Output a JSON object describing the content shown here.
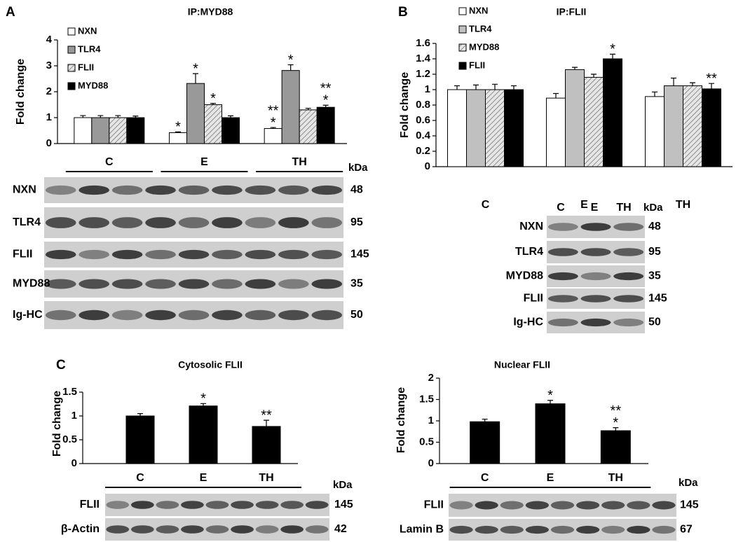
{
  "panel_labels": [
    "A",
    "B",
    "C"
  ],
  "chart_data": [
    {
      "type": "bar",
      "title": "IP:MYD88",
      "y_label": "Fold change",
      "categories": [
        "C",
        "E",
        "TH"
      ],
      "ylim": [
        0,
        4
      ],
      "yticks": [
        0,
        1,
        2,
        3,
        4
      ],
      "series": [
        {
          "name": "NXN",
          "color": "#ffffff",
          "values": [
            1,
            0.42,
            0.58
          ],
          "errors": [
            0.08,
            0.03,
            0.04
          ],
          "stars": [
            null,
            [
              "*"
            ],
            [
              "**",
              "*"
            ]
          ]
        },
        {
          "name": "TLR4",
          "color": "#999999",
          "values": [
            1,
            2.32,
            2.82
          ],
          "errors": [
            0.08,
            0.38,
            0.22
          ],
          "stars": [
            null,
            [
              "*"
            ],
            [
              "*"
            ]
          ]
        },
        {
          "name": "FLII",
          "color": "#d0d0d0",
          "hatch": true,
          "values": [
            1,
            1.5,
            1.3
          ],
          "errors": [
            0.08,
            0.05,
            0.06
          ],
          "stars": [
            null,
            [
              "*"
            ],
            null
          ]
        },
        {
          "name": "MYD88",
          "color": "#000000",
          "values": [
            1,
            1.0,
            1.4
          ],
          "errors": [
            0.06,
            0.07,
            0.08
          ],
          "stars": [
            null,
            null,
            [
              "**",
              "*"
            ]
          ]
        }
      ]
    },
    {
      "type": "bar",
      "title": "IP:FLII",
      "y_label": "Fold change",
      "categories": [
        "C",
        "E",
        "TH"
      ],
      "ylim": [
        0,
        1.6
      ],
      "yticks": [
        0,
        0.2,
        0.4,
        0.6,
        0.8,
        1,
        1.2,
        1.4,
        1.6
      ],
      "series": [
        {
          "name": "NXN",
          "color": "#ffffff",
          "values": [
            1.0,
            0.89,
            0.91
          ],
          "errors": [
            0.05,
            0.06,
            0.06
          ],
          "stars": [
            null,
            null,
            null
          ]
        },
        {
          "name": "TLR4",
          "color": "#c0c0c0",
          "values": [
            1.0,
            1.26,
            1.05
          ],
          "errors": [
            0.06,
            0.03,
            0.1
          ],
          "stars": [
            null,
            null,
            null
          ]
        },
        {
          "name": "MYD88",
          "color": "#d0d0d0",
          "hatch": true,
          "values": [
            1.0,
            1.16,
            1.05
          ],
          "errors": [
            0.07,
            0.04,
            0.04
          ],
          "stars": [
            null,
            null,
            null
          ]
        },
        {
          "name": "FLII",
          "color": "#000000",
          "values": [
            1.0,
            1.4,
            1.01
          ],
          "errors": [
            0.05,
            0.06,
            0.07
          ],
          "stars": [
            null,
            [
              "*"
            ],
            [
              "**"
            ]
          ]
        }
      ]
    },
    {
      "type": "bar",
      "title": "Cytosolic  FLII",
      "y_label": "Fold change",
      "categories": [
        "C",
        "E",
        "TH"
      ],
      "ylim": [
        0,
        1.5
      ],
      "yticks": [
        0,
        0.5,
        1,
        1.5
      ],
      "series": [
        {
          "color": "#000000",
          "values": [
            1.0,
            1.21,
            0.78
          ],
          "errors": [
            0.05,
            0.05,
            0.13
          ],
          "stars": [
            null,
            [
              "*"
            ],
            [
              "**"
            ]
          ]
        }
      ]
    },
    {
      "type": "bar",
      "title": "Nuclear FLII",
      "y_label": "Fold change",
      "categories": [
        "C",
        "E",
        "TH"
      ],
      "ylim": [
        0,
        2
      ],
      "yticks": [
        0,
        0.5,
        1,
        1.5,
        2
      ],
      "series": [
        {
          "color": "#000000",
          "values": [
            0.98,
            1.4,
            0.77
          ],
          "errors": [
            0.06,
            0.08,
            0.07
          ],
          "stars": [
            null,
            [
              "*"
            ],
            [
              "**",
              "*"
            ]
          ]
        }
      ]
    }
  ],
  "blots": [
    {
      "unit": "kDa",
      "rows": [
        {
          "protein": "NXN",
          "kda": 48
        },
        {
          "protein": "TLR4",
          "kda": 95
        },
        {
          "protein": "FLII",
          "kda": 145
        },
        {
          "protein": "MYD88",
          "kda": 35
        },
        {
          "protein": "Ig-HC",
          "kda": 50
        }
      ]
    },
    {
      "unit": "kDa",
      "rows": [
        {
          "protein": "NXN",
          "kda": 48
        },
        {
          "protein": "TLR4",
          "kda": 95
        },
        {
          "protein": "MYD88",
          "kda": 35
        },
        {
          "protein": "FLII",
          "kda": 145
        },
        {
          "protein": "Ig-HC",
          "kda": 50
        }
      ]
    },
    {
      "unit": "kDa",
      "rows": [
        {
          "protein": "FLII",
          "kda": 145
        },
        {
          "protein": "β-Actin",
          "kda": 42
        }
      ]
    },
    {
      "unit": "kDa",
      "rows": [
        {
          "protein": "FLII",
          "kda": 145
        },
        {
          "protein": "Lamin B",
          "kda": 67
        }
      ]
    }
  ]
}
